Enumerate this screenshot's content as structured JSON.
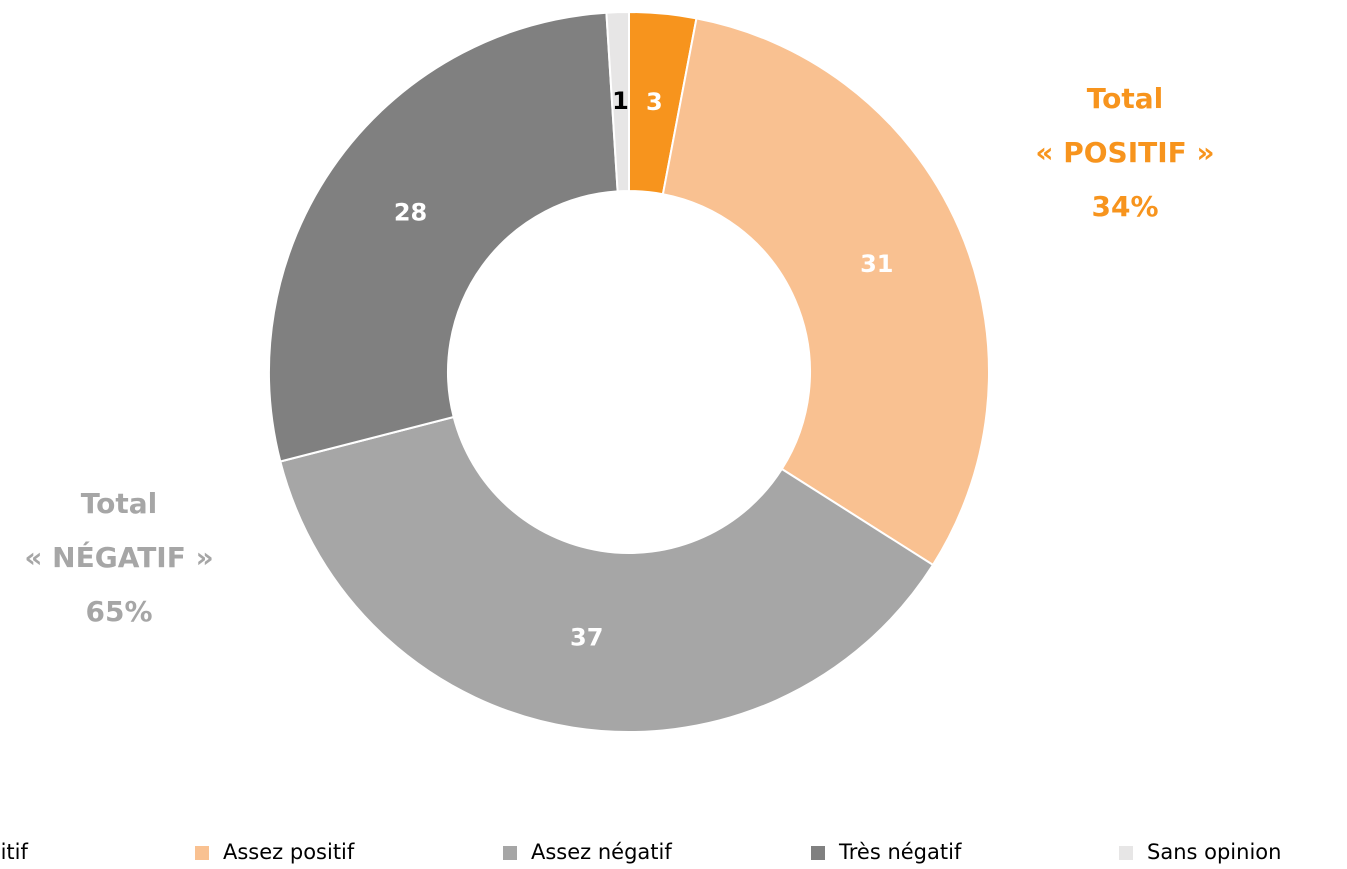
{
  "chart_data": {
    "type": "donut",
    "categories": [
      "Très positif",
      "Assez positif",
      "Assez négatif",
      "Très négatif",
      "Sans opinion"
    ],
    "values": [
      3,
      31,
      37,
      28,
      1
    ],
    "colors": [
      "#f7941d",
      "#f9c191",
      "#a6a6a6",
      "#808080",
      "#e7e6e6"
    ],
    "legend": "bottom",
    "annotations": [
      {
        "lines": [
          "Total",
          "« POSITIF »",
          "34%"
        ],
        "color": "#f7941d"
      },
      {
        "lines": [
          "Total",
          "« NÉGATIF »",
          "65%"
        ],
        "color": "#a6a6a6"
      }
    ]
  }
}
